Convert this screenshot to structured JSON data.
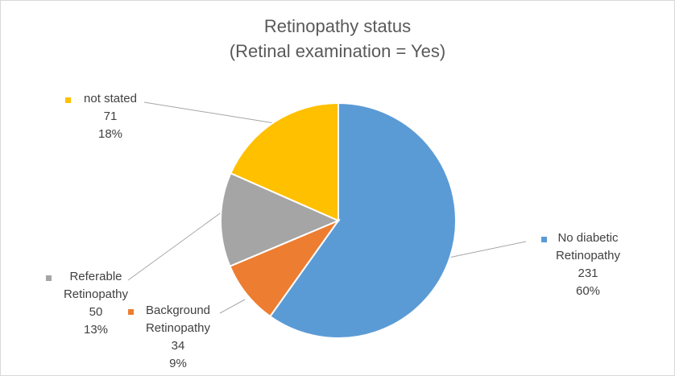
{
  "chart_data": {
    "type": "pie",
    "title": [
      "Retinopathy status",
      "(Retinal examination = Yes)"
    ],
    "slices": [
      {
        "name": "No diabetic Retinopathy",
        "label_lines": [
          "No diabetic",
          "Retinopathy"
        ],
        "value": 231,
        "percent_label": "60%",
        "color": "#5b9bd5"
      },
      {
        "name": "Background Retinopathy",
        "label_lines": [
          "Background",
          "Retinopathy"
        ],
        "value": 34,
        "percent_label": "9%",
        "color": "#ed7d31"
      },
      {
        "name": "Referable Retinopathy",
        "label_lines": [
          "Referable",
          "Retinopathy"
        ],
        "value": 50,
        "percent_label": "13%",
        "color": "#a5a5a5"
      },
      {
        "name": "not stated",
        "label_lines": [
          "not stated"
        ],
        "value": 71,
        "percent_label": "18%",
        "color": "#ffc000"
      }
    ],
    "legend": "none",
    "data_labels": "outside with leader lines"
  }
}
